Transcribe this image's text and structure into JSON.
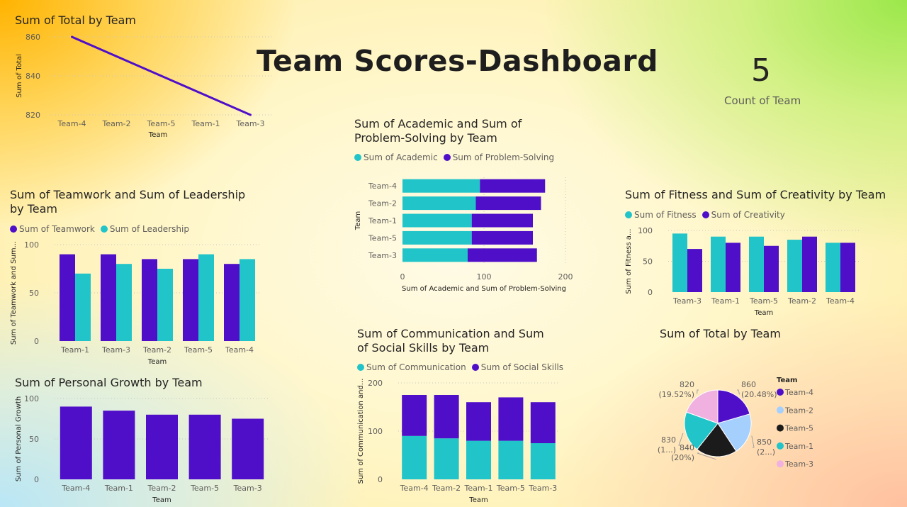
{
  "dashboard_title": "Team Scores-Dashboard",
  "card": {
    "value": "5",
    "label": "Count of Team"
  },
  "colors": {
    "purple": "#4f0fc9",
    "teal": "#21c4c8",
    "pie_team4": "#4f0fc9",
    "pie_team2": "#a5cffc",
    "pie_team5": "#1b1b1b",
    "pie_team1": "#21c4c8",
    "pie_team3": "#f0b0e0"
  },
  "charts": {
    "total_line": {
      "title": "Sum of Total by Team",
      "xlabel": "Team",
      "ylabel": "Sum of Total"
    },
    "academic": {
      "title": "Sum of Academic and Sum of Problem-Solving by Team",
      "xlabel": "Sum of Academic and Sum of Problem-Solving",
      "ylabel": "Team",
      "legend": [
        "Sum of Academic",
        "Sum of Problem-Solving"
      ]
    },
    "fitness": {
      "title": "Sum of Fitness and Sum of Creativity by Team",
      "xlabel": "Team",
      "ylabel": "Sum of Fitness a...",
      "legend": [
        "Sum of Fitness",
        "Sum of Creativity"
      ]
    },
    "teamwork": {
      "title": "Sum of Teamwork and Sum of Leadership by Team",
      "xlabel": "Team",
      "ylabel": "Sum of Teamwork and Sum...",
      "legend": [
        "Sum of Teamwork",
        "Sum of Leadership"
      ]
    },
    "personal": {
      "title": "Sum of Personal Growth by Team",
      "xlabel": "Team",
      "ylabel": "Sum of Personal Growth"
    },
    "communication": {
      "title": "Sum of Communication and Sum of Social Skills by Team",
      "xlabel": "Team",
      "ylabel": "Sum of Communication and...",
      "legend": [
        "Sum of Communication",
        "Sum of Social Skills"
      ]
    },
    "total_pie": {
      "title": "Sum of Total by Team",
      "legend_title": "Team"
    }
  },
  "chart_data": [
    {
      "id": "total_line",
      "type": "line",
      "title": "Sum of Total by Team",
      "xlabel": "Team",
      "ylabel": "Sum of Total",
      "categories": [
        "Team-4",
        "Team-2",
        "Team-5",
        "Team-1",
        "Team-3"
      ],
      "values": [
        860,
        850,
        840,
        830,
        820
      ],
      "ylim": [
        820,
        860
      ],
      "yticks": [
        820,
        840,
        860
      ],
      "grid": true
    },
    {
      "id": "academic",
      "type": "bar",
      "orientation": "horizontal",
      "stacked": true,
      "title": "Sum of Academic and Sum of Problem-Solving by Team",
      "xlabel": "Sum of Academic and Sum of Problem-Solving",
      "ylabel": "Team",
      "categories": [
        "Team-4",
        "Team-2",
        "Team-1",
        "Team-5",
        "Team-3"
      ],
      "series": [
        {
          "name": "Sum of Academic",
          "values": [
            95,
            90,
            85,
            85,
            80
          ]
        },
        {
          "name": "Sum of Problem-Solving",
          "values": [
            80,
            80,
            75,
            75,
            85
          ]
        }
      ],
      "xlim": [
        0,
        200
      ],
      "xticks": [
        0,
        100,
        200
      ],
      "legend": "top-left"
    },
    {
      "id": "fitness",
      "type": "bar",
      "grouped": true,
      "title": "Sum of Fitness and Sum of Creativity by Team",
      "xlabel": "Team",
      "ylabel": "Sum of Fitness a...",
      "categories": [
        "Team-3",
        "Team-1",
        "Team-5",
        "Team-2",
        "Team-4"
      ],
      "series": [
        {
          "name": "Sum of Fitness",
          "values": [
            95,
            90,
            90,
            85,
            80
          ]
        },
        {
          "name": "Sum of Creativity",
          "values": [
            70,
            80,
            75,
            90,
            80
          ]
        }
      ],
      "ylim": [
        0,
        100
      ],
      "yticks": [
        0,
        50,
        100
      ],
      "legend": "top-left"
    },
    {
      "id": "teamwork",
      "type": "bar",
      "grouped": true,
      "title": "Sum of Teamwork and Sum of Leadership by Team",
      "xlabel": "Team",
      "ylabel": "Sum of Teamwork and Sum...",
      "categories": [
        "Team-1",
        "Team-3",
        "Team-2",
        "Team-5",
        "Team-4"
      ],
      "series": [
        {
          "name": "Sum of Teamwork",
          "values": [
            90,
            90,
            85,
            85,
            80
          ]
        },
        {
          "name": "Sum of Leadership",
          "values": [
            70,
            80,
            75,
            90,
            85
          ]
        }
      ],
      "ylim": [
        0,
        100
      ],
      "yticks": [
        0,
        50,
        100
      ],
      "legend": "top-left"
    },
    {
      "id": "personal",
      "type": "bar",
      "title": "Sum of Personal Growth by Team",
      "xlabel": "Team",
      "ylabel": "Sum of Personal Growth",
      "categories": [
        "Team-4",
        "Team-1",
        "Team-2",
        "Team-5",
        "Team-3"
      ],
      "values": [
        90,
        85,
        80,
        80,
        75
      ],
      "ylim": [
        0,
        100
      ],
      "yticks": [
        0,
        50,
        100
      ]
    },
    {
      "id": "communication",
      "type": "bar",
      "stacked": true,
      "title": "Sum of Communication and Sum of Social Skills by Team",
      "xlabel": "Team",
      "ylabel": "Sum of Communication and...",
      "categories": [
        "Team-4",
        "Team-2",
        "Team-1",
        "Team-5",
        "Team-3"
      ],
      "series": [
        {
          "name": "Sum of Communication",
          "values": [
            90,
            85,
            80,
            80,
            75
          ]
        },
        {
          "name": "Sum of Social Skills",
          "values": [
            85,
            90,
            80,
            90,
            85
          ]
        }
      ],
      "ylim": [
        0,
        200
      ],
      "yticks": [
        0,
        100,
        200
      ],
      "legend": "top-left"
    },
    {
      "id": "total_pie",
      "type": "pie",
      "title": "Sum of Total by Team",
      "legend_title": "Team",
      "categories": [
        "Team-4",
        "Team-2",
        "Team-5",
        "Team-1",
        "Team-3"
      ],
      "values": [
        860,
        850,
        840,
        830,
        820
      ],
      "data_labels": [
        "860",
        "850",
        "840",
        "830",
        "820"
      ],
      "pct_labels": [
        "(20.48%)",
        "(2...)",
        "(20%)",
        "(1...)",
        "(19.52%)"
      ],
      "legend": "right"
    }
  ]
}
